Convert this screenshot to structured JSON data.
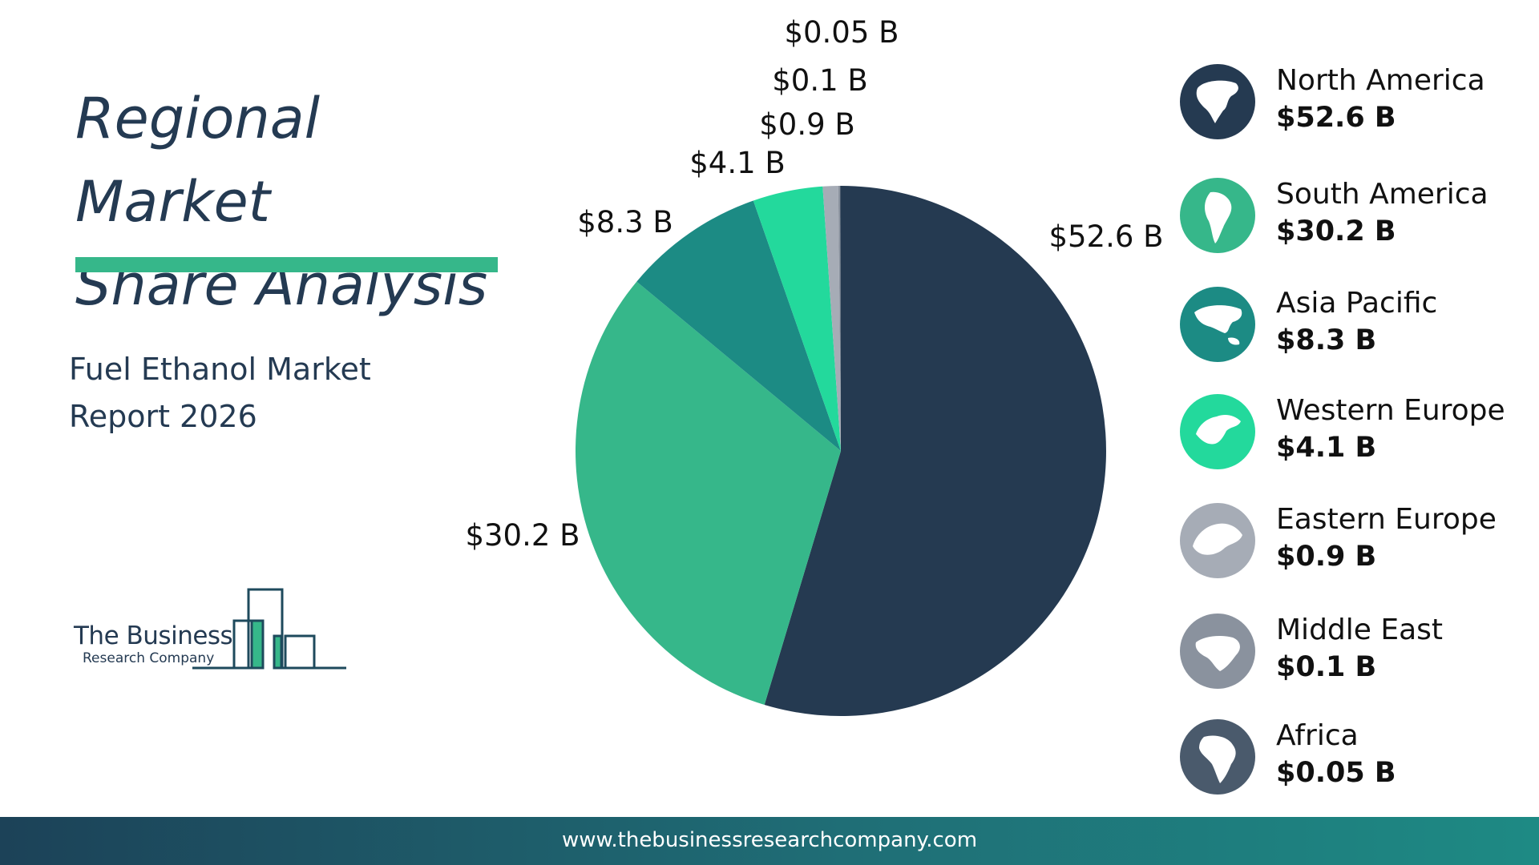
{
  "header": {
    "title_line1": "Regional Market",
    "title_line2": "Share Analysis",
    "subtitle_line1": "Fuel Ethanol Market",
    "subtitle_line2": "Report 2026"
  },
  "logo": {
    "line1": "The Business",
    "line2": "Research Company"
  },
  "footer": {
    "url": "www.thebusinessresearchcompany.com"
  },
  "colors": {
    "north_america": "#253a51",
    "south_america": "#36b78a",
    "asia_pacific": "#1c8b84",
    "western_europe": "#23d99c",
    "eastern_europe": "#a6acb6",
    "middle_east": "#8a929e",
    "africa": "#4a5a6c",
    "accent_bar": "#36b78a"
  },
  "chart_data": {
    "type": "pie",
    "title": "",
    "unit": "$ B",
    "categories": [
      "North America",
      "South America",
      "Asia Pacific",
      "Western Europe",
      "Eastern Europe",
      "Middle East",
      "Africa"
    ],
    "values": [
      52.6,
      30.2,
      8.3,
      4.1,
      0.9,
      0.1,
      0.05
    ],
    "labels": [
      "$52.6 B",
      "$30.2 B",
      "$8.3 B",
      "$4.1 B",
      "$0.9 B",
      "$0.1 B",
      "$0.05 B"
    ],
    "colors": [
      "#253a51",
      "#36b78a",
      "#1c8b84",
      "#23d99c",
      "#a6acb6",
      "#8a929e",
      "#4a5a6c"
    ],
    "start": "top",
    "direction": "clockwise"
  },
  "legend": {
    "position": "right",
    "items": [
      {
        "name": "North America",
        "value": "$52.6 B",
        "icon": "north-america-map-icon"
      },
      {
        "name": "South America",
        "value": "$30.2 B",
        "icon": "south-america-map-icon"
      },
      {
        "name": "Asia Pacific",
        "value": "$8.3 B",
        "icon": "asia-pacific-map-icon"
      },
      {
        "name": "Western Europe",
        "value": "$4.1 B",
        "icon": "western-europe-map-icon"
      },
      {
        "name": "Eastern Europe",
        "value": "$0.9 B",
        "icon": "eastern-europe-map-icon"
      },
      {
        "name": "Middle East",
        "value": "$0.1 B",
        "icon": "middle-east-map-icon"
      },
      {
        "name": "Africa",
        "value": "$0.05 B",
        "icon": "africa-map-icon"
      }
    ]
  }
}
